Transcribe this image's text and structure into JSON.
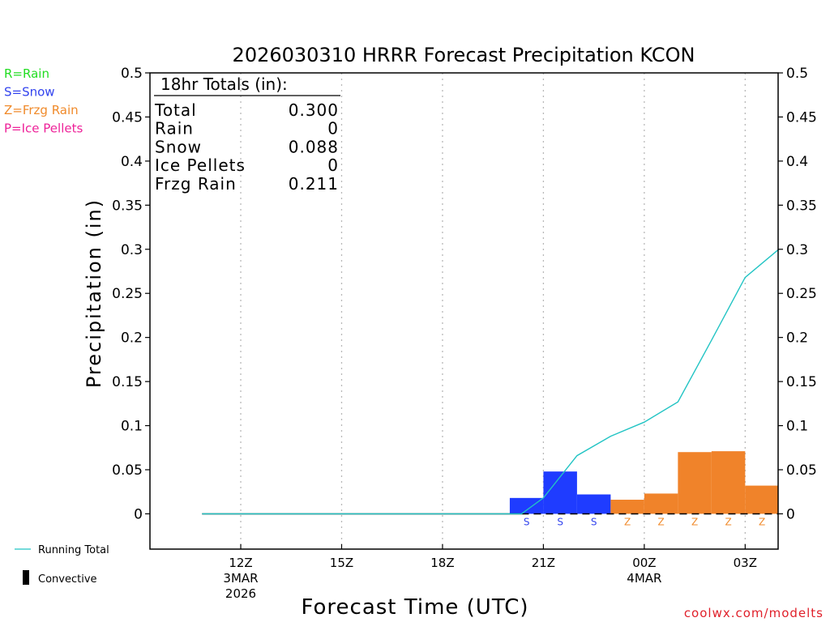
{
  "chart_data": {
    "type": "bar",
    "title": "2026030310 HRRR Forecast Precipitation KCON",
    "xlabel": "Forecast Time (UTC)",
    "ylabel": "Precipitation (in)",
    "ylim": [
      -0.04,
      0.5
    ],
    "y_ticks": [
      "0",
      "0.05",
      "0.1",
      "0.15",
      "0.2",
      "0.25",
      "0.3",
      "0.35",
      "0.4",
      "0.45",
      "0.5"
    ],
    "y_tick_values": [
      0,
      0.05,
      0.1,
      0.15,
      0.2,
      0.25,
      0.3,
      0.35,
      0.4,
      0.45,
      0.5
    ],
    "x_ticks": [
      {
        "hour": 12,
        "label": "12Z",
        "sub": [
          "3MAR",
          "2026"
        ]
      },
      {
        "hour": 15,
        "label": "15Z",
        "sub": []
      },
      {
        "hour": 18,
        "label": "18Z",
        "sub": []
      },
      {
        "hour": 21,
        "label": "21Z",
        "sub": []
      },
      {
        "hour": 24,
        "label": "00Z",
        "sub": [
          "4MAR"
        ]
      },
      {
        "hour": 27,
        "label": "03Z",
        "sub": []
      }
    ],
    "x_range_hours": [
      9.3,
      27.98
    ],
    "hourly": [
      {
        "hour": 11,
        "value": 0,
        "type": "",
        "letter": ""
      },
      {
        "hour": 12,
        "value": 0,
        "type": "",
        "letter": ""
      },
      {
        "hour": 13,
        "value": 0,
        "type": "",
        "letter": ""
      },
      {
        "hour": 14,
        "value": 0,
        "type": "",
        "letter": ""
      },
      {
        "hour": 15,
        "value": 0,
        "type": "",
        "letter": ""
      },
      {
        "hour": 16,
        "value": 0,
        "type": "",
        "letter": ""
      },
      {
        "hour": 17,
        "value": 0,
        "type": "",
        "letter": ""
      },
      {
        "hour": 18,
        "value": 0,
        "type": "",
        "letter": ""
      },
      {
        "hour": 19,
        "value": 0,
        "type": "",
        "letter": ""
      },
      {
        "hour": 20,
        "value": 0,
        "type": "",
        "letter": ""
      },
      {
        "hour": 21,
        "value": 0.018,
        "type": "snow",
        "letter": "S"
      },
      {
        "hour": 22,
        "value": 0.048,
        "type": "snow",
        "letter": "S"
      },
      {
        "hour": 23,
        "value": 0.022,
        "type": "snow",
        "letter": "S"
      },
      {
        "hour": 24,
        "value": 0.016,
        "type": "frzg",
        "letter": "Z"
      },
      {
        "hour": 25,
        "value": 0.023,
        "type": "frzg",
        "letter": "Z"
      },
      {
        "hour": 26,
        "value": 0.07,
        "type": "frzg",
        "letter": "Z"
      },
      {
        "hour": 27,
        "value": 0.071,
        "type": "frzg",
        "letter": "Z"
      },
      {
        "hour": 28,
        "value": 0.032,
        "type": "frzg",
        "letter": "Z"
      }
    ],
    "running_total": {
      "hours": [
        10.85,
        20.35,
        21,
        22,
        23,
        24,
        25,
        26,
        27,
        28
      ],
      "values": [
        0,
        0,
        0.018,
        0.066,
        0.088,
        0.104,
        0.127,
        0.197,
        0.268,
        0.3
      ]
    },
    "totals_box": {
      "title": "18hr Totals (in):",
      "rows": [
        {
          "label": "Total",
          "value": "0.300"
        },
        {
          "label": "Rain",
          "value": "0"
        },
        {
          "label": "Snow",
          "value": "0.088"
        },
        {
          "label": "Ice Pellets",
          "value": "0"
        },
        {
          "label": "Frzg Rain",
          "value": "0.211"
        }
      ]
    },
    "type_legend": [
      {
        "label": "R=Rain",
        "color": "#22dd22"
      },
      {
        "label": "S=Snow",
        "color": "#3344ee"
      },
      {
        "label": "Z=Frzg Rain",
        "color": "#f08a2a"
      },
      {
        "label": "P=Ice Pellets",
        "color": "#ee2299"
      }
    ],
    "line_legend": [
      {
        "label": "Running Total",
        "color": "#22c4c4"
      },
      {
        "label": "Convective",
        "color": "#000000"
      }
    ],
    "colors": {
      "snow": "#1f3cff",
      "frzg": "#f0832a",
      "rain": "#22dd22",
      "line": "#22c4c4",
      "snow_letter": "#3344ee",
      "frzg_letter": "#f08a2a"
    },
    "credit": "coolwx.com/modelts"
  }
}
